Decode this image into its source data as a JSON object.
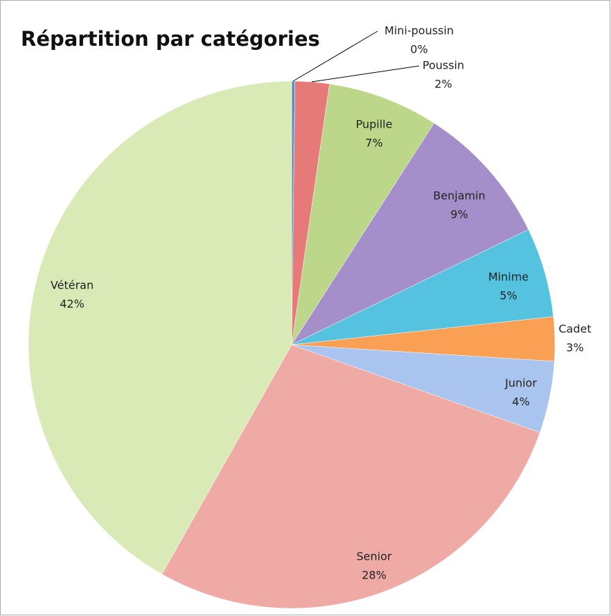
{
  "chart_data": {
    "type": "pie",
    "title": "Répartition par catégories",
    "categories": [
      "Mini-poussin",
      "Poussin",
      "Pupille",
      "Benjamin",
      "Minime",
      "Cadet",
      "Junior",
      "Senior",
      "Vétéran"
    ],
    "values": [
      0.2,
      2.1,
      6.8,
      8.7,
      5.5,
      2.7,
      4.4,
      27.8,
      41.8
    ],
    "value_labels": [
      "0%",
      "2%",
      "7%",
      "9%",
      "5%",
      "3%",
      "4%",
      "28%",
      "42%"
    ],
    "colors": [
      "#5b8fd0",
      "#e57a78",
      "#bcd68a",
      "#a58fcb",
      "#55c3df",
      "#f9a055",
      "#a9c4ee",
      "#efaaa6",
      "#d9eab6"
    ]
  }
}
